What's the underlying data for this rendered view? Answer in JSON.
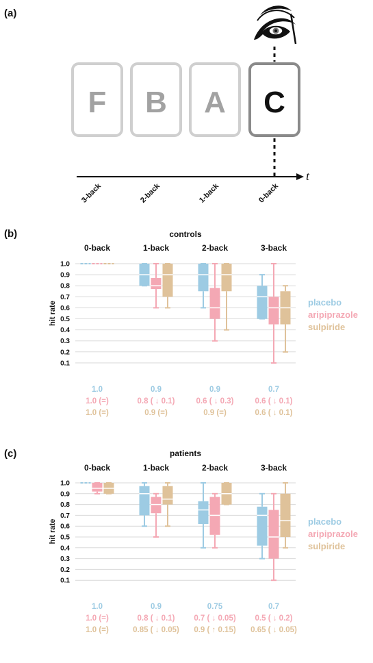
{
  "panels": {
    "a": "(a)",
    "b": "(b)",
    "c": "(c)"
  },
  "diagram": {
    "cards": [
      "F",
      "B",
      "A",
      "C"
    ],
    "axis_labels": [
      "3-back",
      "2-back",
      "1-back",
      "0-back"
    ],
    "time_label": "t",
    "eye_icon": "eye-icon"
  },
  "colors": {
    "placebo": "#9dcbe3",
    "aripiprazole": "#f4a8b4",
    "sulpiride": "#dfc29a"
  },
  "chart_data": [
    {
      "type": "boxplot",
      "title": "controls",
      "ylabel": "hit rate",
      "ylim": [
        0,
        1.0
      ],
      "yticks": [
        "1.0",
        "0.9",
        "0.8",
        "0.7",
        "0.6",
        "0.5",
        "0.4",
        "0.3",
        "0.2",
        "0.1"
      ],
      "categories": [
        "0-back",
        "1-back",
        "2-back",
        "3-back"
      ],
      "grid": true,
      "legend_position": "right",
      "series": [
        {
          "name": "placebo",
          "color": "#9dcbe3",
          "boxes": [
            {
              "min": 1.0,
              "q1": 1.0,
              "median": 1.0,
              "q3": 1.0,
              "max": 1.0
            },
            {
              "min": 0.8,
              "q1": 0.8,
              "median": 0.9,
              "q3": 1.0,
              "max": 1.0
            },
            {
              "min": 0.6,
              "q1": 0.75,
              "median": 0.9,
              "q3": 1.0,
              "max": 1.0
            },
            {
              "min": 0.5,
              "q1": 0.5,
              "median": 0.7,
              "q3": 0.8,
              "max": 0.9
            }
          ]
        },
        {
          "name": "aripiprazole",
          "color": "#f4a8b4",
          "boxes": [
            {
              "min": 1.0,
              "q1": 1.0,
              "median": 1.0,
              "q3": 1.0,
              "max": 1.0
            },
            {
              "min": 0.6,
              "q1": 0.77,
              "median": 0.8,
              "q3": 0.87,
              "max": 1.0
            },
            {
              "min": 0.3,
              "q1": 0.5,
              "median": 0.6,
              "q3": 0.78,
              "max": 1.0
            },
            {
              "min": 0.1,
              "q1": 0.45,
              "median": 0.6,
              "q3": 0.7,
              "max": 1.0
            }
          ]
        },
        {
          "name": "sulpiride",
          "color": "#dfc29a",
          "boxes": [
            {
              "min": 1.0,
              "q1": 1.0,
              "median": 1.0,
              "q3": 1.0,
              "max": 1.0
            },
            {
              "min": 0.6,
              "q1": 0.7,
              "median": 0.9,
              "q3": 1.0,
              "max": 1.0
            },
            {
              "min": 0.4,
              "q1": 0.75,
              "median": 0.9,
              "q3": 1.0,
              "max": 1.0
            },
            {
              "min": 0.2,
              "q1": 0.45,
              "median": 0.6,
              "q3": 0.75,
              "max": 0.8
            }
          ]
        }
      ],
      "summary": [
        [
          "1.0",
          "1.0 (=)",
          "1.0 (=)"
        ],
        [
          "0.9",
          "0.8 ( ↓ 0.1)",
          "0.9 (=)"
        ],
        [
          "0.9",
          "0.6 ( ↓ 0.3)",
          "0.9 (=)"
        ],
        [
          "0.7",
          "0.6 ( ↓ 0.1)",
          "0.6 ( ↓ 0.1)"
        ]
      ]
    },
    {
      "type": "boxplot",
      "title": "patients",
      "ylabel": "hit rate",
      "ylim": [
        0,
        1.0
      ],
      "yticks": [
        "1.0",
        "0.9",
        "0.8",
        "0.7",
        "0.6",
        "0.5",
        "0.4",
        "0.3",
        "0.2",
        "0.1"
      ],
      "categories": [
        "0-back",
        "1-back",
        "2-back",
        "3-back"
      ],
      "grid": true,
      "legend_position": "right",
      "series": [
        {
          "name": "placebo",
          "color": "#9dcbe3",
          "boxes": [
            {
              "min": 1.0,
              "q1": 1.0,
              "median": 1.0,
              "q3": 1.0,
              "max": 1.0
            },
            {
              "min": 0.6,
              "q1": 0.7,
              "median": 0.9,
              "q3": 0.97,
              "max": 1.0
            },
            {
              "min": 0.4,
              "q1": 0.62,
              "median": 0.75,
              "q3": 0.83,
              "max": 1.0
            },
            {
              "min": 0.3,
              "q1": 0.42,
              "median": 0.7,
              "q3": 0.78,
              "max": 0.9
            }
          ]
        },
        {
          "name": "aripiprazole",
          "color": "#f4a8b4",
          "boxes": [
            {
              "min": 0.9,
              "q1": 0.92,
              "median": 0.95,
              "q3": 1.0,
              "max": 1.0
            },
            {
              "min": 0.5,
              "q1": 0.72,
              "median": 0.8,
              "q3": 0.87,
              "max": 0.9
            },
            {
              "min": 0.4,
              "q1": 0.52,
              "median": 0.7,
              "q3": 0.87,
              "max": 0.9
            },
            {
              "min": 0.1,
              "q1": 0.3,
              "median": 0.5,
              "q3": 0.75,
              "max": 0.9
            }
          ]
        },
        {
          "name": "sulpiride",
          "color": "#dfc29a",
          "boxes": [
            {
              "min": 0.9,
              "q1": 0.9,
              "median": 0.95,
              "q3": 1.0,
              "max": 1.0
            },
            {
              "min": 0.6,
              "q1": 0.8,
              "median": 0.85,
              "q3": 0.97,
              "max": 1.0
            },
            {
              "min": 0.8,
              "q1": 0.8,
              "median": 0.9,
              "q3": 1.0,
              "max": 1.0
            },
            {
              "min": 0.4,
              "q1": 0.5,
              "median": 0.65,
              "q3": 0.9,
              "max": 1.0
            }
          ]
        }
      ],
      "summary": [
        [
          "1.0",
          "1.0 (=)",
          "1.0 (=)"
        ],
        [
          "0.9",
          "0.8 ( ↓ 0.1)",
          "0.85 ( ↓ 0.05)"
        ],
        [
          "0.75",
          "0.7 ( ↓ 0.05)",
          "0.9 ( ↑ 0.15)"
        ],
        [
          "0.7",
          "0.5 ( ↓ 0.2)",
          "0.65 ( ↓ 0.05)"
        ]
      ]
    }
  ]
}
